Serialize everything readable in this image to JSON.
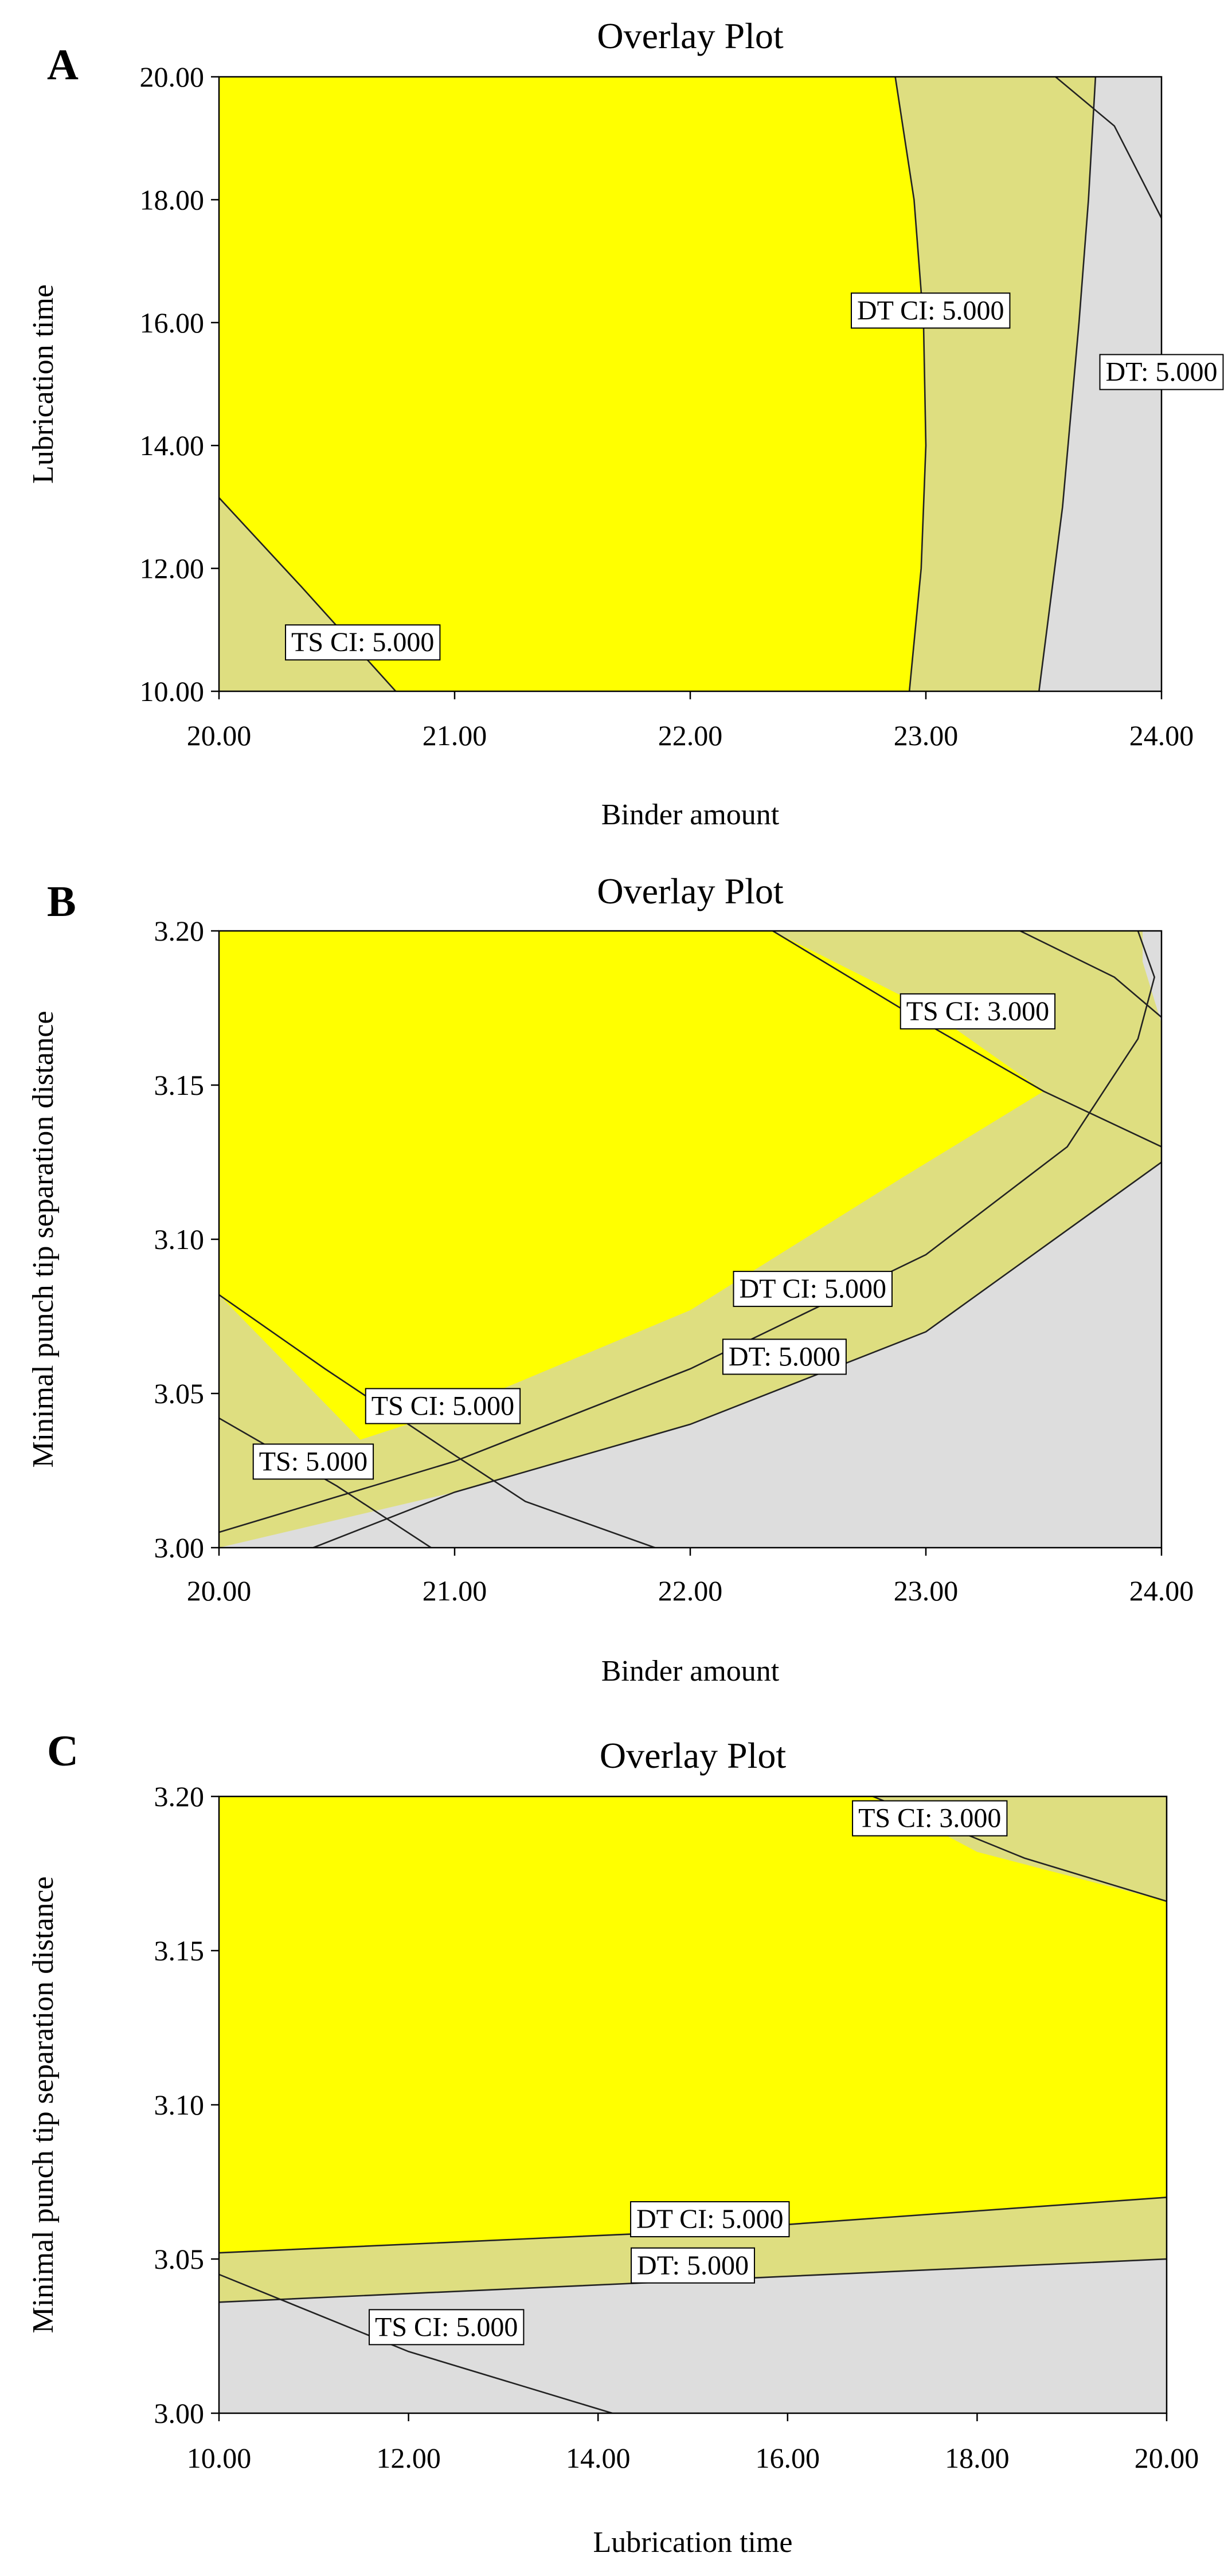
{
  "colors": {
    "feasible": "#ffff00",
    "partial": "#dede80",
    "infeasible": "#dddddd",
    "line": "#222222"
  },
  "chart_data": [
    {
      "panel": "A",
      "type": "contour",
      "title": "Overlay Plot",
      "xlabel": "Binder amount",
      "ylabel": "Lubrication time",
      "xlim": [
        20.0,
        24.0
      ],
      "ylim": [
        10.0,
        20.0
      ],
      "xticks": [
        "20.00",
        "21.00",
        "22.00",
        "23.00",
        "24.00"
      ],
      "yticks": [
        "10.00",
        "12.00",
        "14.00",
        "16.00",
        "18.00",
        "20.00"
      ],
      "regions": [
        {
          "name": "grey-region",
          "fill": "infeasible",
          "points": [
            [
              23.48,
              10
            ],
            [
              23.58,
              13
            ],
            [
              23.65,
              16
            ],
            [
              23.69,
              18
            ],
            [
              23.72,
              20
            ],
            [
              24,
              20
            ],
            [
              24,
              10
            ]
          ]
        },
        {
          "name": "yellow-region",
          "fill": "feasible",
          "points": [
            [
              20.75,
              10
            ],
            [
              22.93,
              10
            ],
            [
              22.98,
              12
            ],
            [
              23.0,
              14
            ],
            [
              22.99,
              16
            ],
            [
              22.95,
              18
            ],
            [
              22.87,
              20
            ],
            [
              20,
              20
            ],
            [
              20,
              13.15
            ]
          ]
        }
      ],
      "contours": [
        {
          "name": "DT CI",
          "points": [
            [
              22.93,
              10
            ],
            [
              22.98,
              12
            ],
            [
              23.0,
              14
            ],
            [
              22.99,
              16
            ],
            [
              22.95,
              18
            ],
            [
              22.87,
              20
            ]
          ]
        },
        {
          "name": "DT",
          "points": [
            [
              23.48,
              10
            ],
            [
              23.58,
              13
            ],
            [
              23.65,
              16
            ],
            [
              23.69,
              18
            ],
            [
              23.72,
              20
            ]
          ]
        },
        {
          "name": "TS CI",
          "points": [
            [
              20,
              13.15
            ],
            [
              20.35,
              11.7
            ],
            [
              20.75,
              10
            ]
          ]
        },
        {
          "name": "TS CI top",
          "points": [
            [
              23.55,
              20
            ],
            [
              23.8,
              19.2
            ],
            [
              24,
              17.7
            ]
          ]
        }
      ],
      "labels": [
        {
          "text": "DT CI:  5.000",
          "x": 23.02,
          "y": 16.2
        },
        {
          "text": "DT: 5.000",
          "x": 24.0,
          "y": 15.2
        },
        {
          "text": "TS CI:  5.000",
          "x": 20.61,
          "y": 10.8
        }
      ]
    },
    {
      "panel": "B",
      "type": "contour",
      "title": "Overlay Plot",
      "xlabel": "Binder amount",
      "ylabel": "Minimal punch tip separation distance",
      "xlim": [
        20.0,
        24.0
      ],
      "ylim": [
        3.0,
        3.2
      ],
      "xticks": [
        "20.00",
        "21.00",
        "22.00",
        "23.00",
        "24.00"
      ],
      "yticks": [
        "3.00",
        "3.05",
        "3.10",
        "3.15",
        "3.20"
      ],
      "regions": [
        {
          "name": "grey-region-bottom",
          "fill": "infeasible",
          "points": [
            [
              20,
              3.0
            ],
            [
              20,
              3.0
            ],
            [
              21,
              3.018
            ],
            [
              22,
              3.04
            ],
            [
              23,
              3.07
            ],
            [
              24,
              3.125
            ],
            [
              24,
              3.0
            ]
          ]
        },
        {
          "name": "grey-region-topright",
          "fill": "infeasible",
          "points": [
            [
              23.92,
              3.2
            ],
            [
              24,
              3.2
            ],
            [
              24,
              3.17
            ],
            [
              23.92,
              3.19
            ]
          ]
        },
        {
          "name": "yellow-region",
          "fill": "feasible",
          "points": [
            [
              20,
              3.2
            ],
            [
              22.35,
              3.2
            ],
            [
              23.0,
              3.175
            ],
            [
              23.5,
              3.148
            ],
            [
              22.9,
              3.12
            ],
            [
              22,
              3.077
            ],
            [
              21,
              3.045
            ],
            [
              20.6,
              3.035
            ],
            [
              20,
              3.082
            ]
          ]
        }
      ],
      "contours": [
        {
          "name": "DT CI",
          "points": [
            [
              20,
              3.005
            ],
            [
              21,
              3.028
            ],
            [
              22,
              3.058
            ],
            [
              23,
              3.095
            ],
            [
              23.6,
              3.13
            ],
            [
              23.9,
              3.165
            ],
            [
              23.97,
              3.185
            ],
            [
              23.9,
              3.2
            ]
          ]
        },
        {
          "name": "DT",
          "points": [
            [
              20.4,
              3.0
            ],
            [
              21,
              3.018
            ],
            [
              22,
              3.04
            ],
            [
              23,
              3.07
            ],
            [
              24,
              3.125
            ]
          ]
        },
        {
          "name": "TS CI low",
          "points": [
            [
              20,
              3.082
            ],
            [
              20.45,
              3.058
            ],
            [
              21,
              3.03
            ],
            [
              21.3,
              3.015
            ],
            [
              21.85,
              3.0
            ]
          ]
        },
        {
          "name": "TS low",
          "points": [
            [
              20,
              3.042
            ],
            [
              20.5,
              3.02
            ],
            [
              20.9,
              3.0
            ]
          ]
        },
        {
          "name": "TS CI high",
          "points": [
            [
              22.35,
              3.2
            ],
            [
              23,
              3.17
            ],
            [
              23.5,
              3.148
            ],
            [
              24,
              3.13
            ]
          ]
        },
        {
          "name": "TS high",
          "points": [
            [
              23.4,
              3.2
            ],
            [
              23.8,
              3.185
            ],
            [
              24,
              3.172
            ]
          ]
        }
      ],
      "labels": [
        {
          "text": "TS CI:  3.000",
          "x": 23.22,
          "y": 3.174
        },
        {
          "text": "DT CI:  5.000",
          "x": 22.52,
          "y": 3.084
        },
        {
          "text": "DT: 5.000",
          "x": 22.4,
          "y": 3.062
        },
        {
          "text": "TS CI:  5.000",
          "x": 20.95,
          "y": 3.046
        },
        {
          "text": "TS: 5.000",
          "x": 20.4,
          "y": 3.028
        }
      ]
    },
    {
      "panel": "C",
      "type": "contour",
      "title": "Overlay Plot",
      "xlabel": "Lubrication time",
      "ylabel": "Minimal punch tip separation distance",
      "xlim": [
        10.0,
        20.0
      ],
      "ylim": [
        3.0,
        3.2
      ],
      "xticks": [
        "10.00",
        "12.00",
        "14.00",
        "16.00",
        "18.00",
        "20.00"
      ],
      "yticks": [
        "3.00",
        "3.05",
        "3.10",
        "3.15",
        "3.20"
      ],
      "regions": [
        {
          "name": "grey-region",
          "fill": "infeasible",
          "points": [
            [
              10,
              3.0
            ],
            [
              10,
              3.036
            ],
            [
              15,
              3.043
            ],
            [
              20,
              3.05
            ],
            [
              20,
              3.0
            ]
          ]
        },
        {
          "name": "yellow-region",
          "fill": "feasible",
          "points": [
            [
              10,
              3.052
            ],
            [
              15,
              3.059
            ],
            [
              20,
              3.07
            ],
            [
              20,
              3.166
            ],
            [
              19,
              3.174
            ],
            [
              18,
              3.182
            ],
            [
              16.9,
              3.2
            ],
            [
              10,
              3.2
            ]
          ]
        }
      ],
      "contours": [
        {
          "name": "DT CI",
          "points": [
            [
              10,
              3.052
            ],
            [
              15,
              3.059
            ],
            [
              20,
              3.07
            ]
          ]
        },
        {
          "name": "DT",
          "points": [
            [
              10,
              3.036
            ],
            [
              15,
              3.043
            ],
            [
              20,
              3.05
            ]
          ]
        },
        {
          "name": "TS CI low",
          "points": [
            [
              10,
              3.045
            ],
            [
              12,
              3.02
            ],
            [
              14.15,
              3.0
            ]
          ]
        },
        {
          "name": "TS CI high",
          "points": [
            [
              16.9,
              3.2
            ],
            [
              18.5,
              3.18
            ],
            [
              20,
              3.166
            ]
          ]
        }
      ],
      "labels": [
        {
          "text": "TS CI:  3.000",
          "x": 17.5,
          "y": 3.193
        },
        {
          "text": "DT CI:  5.000",
          "x": 15.18,
          "y": 3.063
        },
        {
          "text": "DT: 5.000",
          "x": 15.0,
          "y": 3.048
        },
        {
          "text": "TS CI:  5.000",
          "x": 12.4,
          "y": 3.028
        }
      ]
    }
  ]
}
